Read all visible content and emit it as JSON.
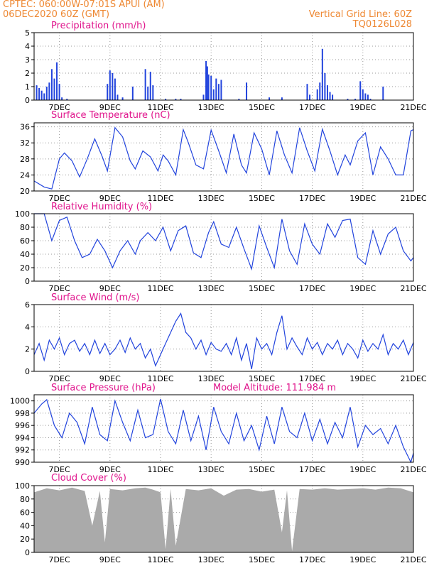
{
  "header": {
    "line1": "CPTEC:   060:00W-07:01S   APUI (AM)",
    "line2": "06DEC2020 60Z (GMT)",
    "right1": "Vertical Grid Line: 60Z",
    "right2": "TQ0126L028"
  },
  "colors": {
    "header": "#ee8833",
    "title": "#e0148c",
    "series": "#2244dd",
    "cloud": "#aaaaaa",
    "axis": "#000000"
  },
  "x_ticks": [
    "7DEC",
    "9DEC",
    "11DEC",
    "13DEC",
    "15DEC",
    "17DEC",
    "19DEC",
    "21DEC"
  ],
  "chart_data": [
    {
      "type": "bar",
      "title": "Precipitation (mm/h)",
      "ylim": [
        0,
        5
      ],
      "y_ticks": [
        "0",
        "1",
        "2",
        "3",
        "4",
        "5"
      ],
      "x": [
        6.1,
        6.2,
        6.3,
        6.4,
        6.5,
        6.6,
        6.7,
        6.8,
        6.9,
        7.0,
        7.1,
        7.3,
        8.9,
        9.0,
        9.1,
        9.2,
        9.3,
        9.5,
        9.9,
        10.4,
        10.5,
        10.6,
        10.7,
        11.2,
        11.6,
        11.8,
        12.7,
        12.8,
        12.85,
        12.9,
        13.0,
        13.1,
        13.2,
        13.3,
        13.4,
        14.1,
        14.4,
        15.3,
        15.8,
        16.8,
        16.9,
        17.2,
        17.3,
        17.4,
        17.5,
        17.6,
        17.7,
        17.8,
        18.4,
        18.7,
        18.9,
        19.0,
        19.1,
        19.2,
        19.3,
        19.8
      ],
      "values": [
        1.1,
        0.9,
        0.7,
        0.5,
        1.0,
        1.3,
        2.3,
        1.6,
        2.8,
        1.2,
        0.2,
        0.1,
        1.2,
        2.2,
        2.0,
        1.6,
        0.4,
        0.2,
        1.0,
        2.3,
        1.0,
        2.1,
        1.1,
        0.1,
        0.1,
        0.1,
        0.4,
        2.9,
        2.5,
        1.9,
        1.8,
        0.8,
        1.6,
        1.2,
        1.5,
        0.1,
        1.3,
        0.2,
        0.2,
        1.2,
        0.4,
        0.8,
        1.3,
        3.8,
        2.0,
        1.1,
        0.6,
        0.4,
        0.1,
        0.1,
        1.4,
        0.8,
        0.5,
        0.4,
        0.1,
        1.0
      ]
    },
    {
      "type": "line",
      "title": "Surface Temperature (nC)",
      "ylim": [
        20,
        37
      ],
      "y_ticks": [
        "20",
        "24",
        "28",
        "32",
        "36"
      ],
      "x": [
        6.0,
        6.4,
        6.7,
        7.0,
        7.2,
        7.5,
        7.8,
        8.1,
        8.4,
        8.7,
        8.9,
        9.2,
        9.5,
        9.8,
        10.0,
        10.3,
        10.6,
        10.9,
        11.1,
        11.3,
        11.6,
        11.9,
        12.1,
        12.4,
        12.7,
        13.0,
        13.3,
        13.6,
        13.9,
        14.2,
        14.4,
        14.7,
        15.0,
        15.3,
        15.6,
        15.9,
        16.2,
        16.5,
        16.8,
        17.1,
        17.4,
        17.7,
        18.0,
        18.3,
        18.5,
        18.8,
        19.1,
        19.4,
        19.7,
        20.0,
        20.3,
        20.6,
        20.9,
        21.0
      ],
      "values": [
        22.5,
        21.0,
        20.5,
        28.0,
        29.5,
        27.5,
        23.5,
        28.0,
        33.0,
        28.5,
        25.0,
        35.8,
        33.5,
        27.5,
        25.5,
        30.0,
        28.5,
        25.0,
        29.0,
        27.5,
        24.0,
        35.3,
        32.0,
        26.5,
        25.5,
        35.2,
        30.0,
        24.5,
        34.2,
        26.5,
        24.5,
        34.5,
        30.5,
        24.0,
        35.0,
        29.0,
        24.5,
        35.8,
        30.0,
        25.0,
        35.4,
        30.0,
        24.0,
        29.0,
        26.5,
        32.5,
        34.5,
        24.0,
        31.0,
        28.0,
        24.0,
        24.0,
        35.0,
        35.3
      ]
    },
    {
      "type": "line",
      "title": "Relative Humidity (%)",
      "ylim": [
        0,
        100
      ],
      "y_ticks": [
        "0",
        "20",
        "40",
        "60",
        "80",
        "100"
      ],
      "x": [
        6.0,
        6.4,
        6.7,
        7.0,
        7.3,
        7.6,
        7.9,
        8.2,
        8.5,
        8.8,
        9.1,
        9.4,
        9.7,
        10.0,
        10.2,
        10.5,
        10.8,
        11.1,
        11.4,
        11.7,
        12.0,
        12.3,
        12.6,
        12.9,
        13.1,
        13.4,
        13.7,
        14.0,
        14.3,
        14.6,
        14.9,
        15.2,
        15.5,
        15.8,
        16.1,
        16.4,
        16.7,
        17.0,
        17.3,
        17.6,
        17.9,
        18.2,
        18.5,
        18.8,
        19.1,
        19.4,
        19.7,
        20.0,
        20.3,
        20.6,
        20.9,
        21.0
      ],
      "values": [
        100,
        100,
        60,
        90,
        95,
        60,
        35,
        40,
        62,
        45,
        20,
        45,
        60,
        40,
        60,
        72,
        60,
        80,
        45,
        75,
        82,
        42,
        35,
        72,
        88,
        55,
        50,
        80,
        48,
        18,
        82,
        50,
        20,
        92,
        45,
        25,
        85,
        55,
        40,
        85,
        65,
        90,
        92,
        35,
        25,
        75,
        40,
        70,
        80,
        45,
        30,
        35
      ]
    },
    {
      "type": "line",
      "title": "Surface Wind (m/s)",
      "ylim": [
        0,
        6
      ],
      "y_ticks": [
        "0",
        "2",
        "4",
        "6"
      ],
      "x": [
        6.0,
        6.2,
        6.4,
        6.6,
        6.8,
        7.0,
        7.2,
        7.4,
        7.6,
        7.8,
        8.0,
        8.2,
        8.4,
        8.6,
        8.8,
        9.0,
        9.2,
        9.4,
        9.6,
        9.8,
        10.0,
        10.2,
        10.4,
        10.6,
        10.8,
        11.0,
        11.2,
        11.4,
        11.6,
        11.8,
        12.0,
        12.2,
        12.4,
        12.6,
        12.8,
        13.0,
        13.2,
        13.4,
        13.6,
        13.8,
        14.0,
        14.2,
        14.4,
        14.6,
        14.8,
        15.0,
        15.2,
        15.4,
        15.6,
        15.8,
        16.0,
        16.2,
        16.4,
        16.6,
        16.8,
        17.0,
        17.2,
        17.4,
        17.6,
        17.8,
        18.0,
        18.2,
        18.4,
        18.6,
        18.8,
        19.0,
        19.2,
        19.4,
        19.6,
        19.8,
        20.0,
        20.2,
        20.4,
        20.6,
        20.8,
        21.0
      ],
      "values": [
        1.5,
        2.5,
        1.0,
        2.8,
        2.0,
        3.0,
        1.5,
        2.5,
        2.8,
        1.8,
        2.5,
        1.5,
        2.8,
        1.6,
        2.5,
        1.5,
        2.0,
        2.8,
        1.7,
        3.0,
        2.0,
        2.5,
        1.2,
        2.0,
        0.5,
        1.5,
        2.5,
        3.5,
        4.5,
        5.2,
        3.5,
        3.0,
        2.0,
        2.8,
        1.5,
        2.6,
        2.0,
        1.8,
        2.5,
        1.5,
        3.0,
        1.0,
        2.5,
        0.2,
        3.0,
        2.0,
        2.5,
        1.5,
        3.5,
        5.0,
        2.0,
        3.0,
        2.2,
        1.5,
        3.0,
        2.0,
        2.6,
        1.5,
        2.5,
        2.0,
        2.8,
        1.5,
        2.5,
        2.0,
        1.2,
        2.8,
        1.8,
        2.5,
        2.0,
        3.3,
        1.5,
        2.5,
        2.0,
        2.8,
        1.5,
        2.6
      ]
    },
    {
      "type": "line",
      "title": "Surface Pressure (hPa)",
      "annotation": "Model Altitude: 111.984 m",
      "ylim": [
        990,
        1001
      ],
      "y_ticks": [
        "990",
        "992",
        "994",
        "996",
        "998",
        "1000"
      ],
      "x": [
        6.0,
        6.3,
        6.5,
        6.8,
        7.1,
        7.4,
        7.7,
        8.0,
        8.3,
        8.6,
        8.9,
        9.2,
        9.5,
        9.8,
        10.1,
        10.4,
        10.7,
        11.0,
        11.3,
        11.6,
        11.9,
        12.2,
        12.5,
        12.8,
        13.1,
        13.4,
        13.7,
        14.0,
        14.3,
        14.6,
        14.9,
        15.2,
        15.5,
        15.8,
        16.1,
        16.4,
        16.7,
        17.0,
        17.3,
        17.6,
        17.9,
        18.2,
        18.5,
        18.8,
        19.1,
        19.4,
        19.7,
        20.0,
        20.3,
        20.6,
        20.9,
        21.0
      ],
      "values": [
        998.0,
        999.5,
        1000.2,
        996.0,
        994.0,
        998.0,
        996.5,
        993.0,
        999.0,
        994.5,
        993.5,
        1000.0,
        996.5,
        993.5,
        998.5,
        994.0,
        994.5,
        1000.3,
        995.0,
        993.0,
        998.5,
        993.5,
        997.5,
        992.0,
        999.0,
        995.0,
        993.0,
        998.0,
        993.5,
        996.0,
        992.0,
        997.5,
        993.0,
        999.0,
        995.0,
        994.0,
        998.0,
        993.5,
        997.0,
        993.0,
        996.5,
        994.0,
        999.0,
        992.5,
        996.0,
        994.5,
        995.5,
        993.0,
        996.0,
        992.5,
        990.0,
        991.5
      ]
    },
    {
      "type": "area",
      "title": "Cloud Cover (%)",
      "ylim": [
        0,
        100
      ],
      "y_ticks": [
        "0",
        "20",
        "40",
        "60",
        "80",
        "100"
      ],
      "x": [
        6.0,
        6.5,
        7.0,
        7.5,
        8.0,
        8.3,
        8.6,
        8.8,
        9.0,
        9.5,
        10.0,
        10.4,
        10.7,
        11.0,
        11.2,
        11.4,
        11.6,
        12.0,
        12.5,
        13.0,
        13.5,
        14.0,
        14.5,
        15.0,
        15.5,
        15.8,
        16.0,
        16.2,
        16.5,
        17.0,
        17.5,
        18.0,
        18.5,
        19.0,
        19.5,
        20.0,
        20.5,
        21.0
      ],
      "values": [
        90,
        96,
        93,
        97,
        92,
        40,
        92,
        15,
        95,
        93,
        96,
        97,
        94,
        90,
        5,
        95,
        10,
        95,
        93,
        96,
        85,
        94,
        95,
        91,
        94,
        30,
        93,
        2,
        95,
        94,
        96,
        94,
        95,
        96,
        94,
        97,
        96,
        90
      ]
    }
  ]
}
